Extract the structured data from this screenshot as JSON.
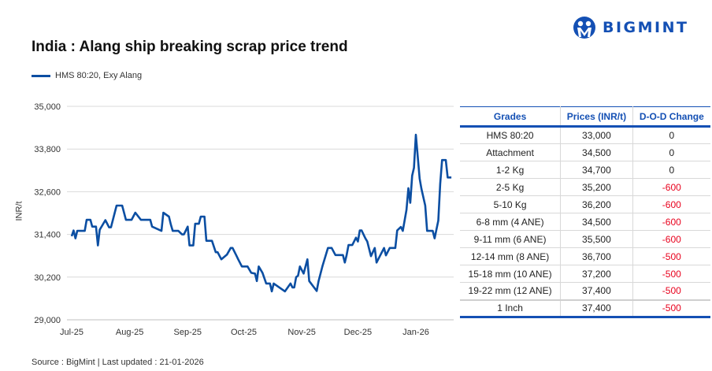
{
  "title": "India : Alang ship breaking scrap price trend",
  "logo": {
    "text": "BIGMINT",
    "color": "#1450b4"
  },
  "source": "Source : BigMint | Last updated : 21-01-2026",
  "table": {
    "headers": [
      "Grades",
      "Prices (INR/t)",
      "D-O-D Change"
    ],
    "rows": [
      [
        "HMS 80:20",
        "33,000",
        "0"
      ],
      [
        "Attachment",
        "34,500",
        "0"
      ],
      [
        "1-2 Kg",
        "34,700",
        "0"
      ],
      [
        "2-5 Kg",
        "35,200",
        "-600"
      ],
      [
        "5-10 Kg",
        "36,200",
        "-600"
      ],
      [
        "6-8 mm (4 ANE)",
        "34,500",
        "-600"
      ],
      [
        "9-11 mm (6 ANE)",
        "35,500",
        "-600"
      ],
      [
        "12-14 mm (8 ANE)",
        "36,700",
        "-500"
      ],
      [
        "15-18 mm (10 ANE)",
        "37,200",
        "-500"
      ],
      [
        "19-22 mm (12 ANE)",
        "37,400",
        "-500"
      ],
      [
        "1 Inch",
        "37,400",
        "-500"
      ]
    ],
    "header_color": "#1450b4",
    "negative_color": "#e8001c"
  },
  "chart_data": {
    "type": "line",
    "title": "India : Alang ship breaking scrap price trend",
    "xlabel": "",
    "ylabel": "INR/t",
    "ylim": [
      29000,
      35000
    ],
    "yticks": [
      "29,000",
      "30,200",
      "31,400",
      "32,600",
      "33,800",
      "35,000"
    ],
    "ytick_values": [
      29000,
      30200,
      31400,
      32600,
      33800,
      35000
    ],
    "xticks": [
      "Jul-25",
      "Aug-25",
      "Sep-25",
      "Oct-25",
      "Nov-25",
      "Dec-25",
      "Jan-26"
    ],
    "xtick_dates": [
      "2025-07-01",
      "2025-08-01",
      "2025-09-01",
      "2025-10-01",
      "2025-11-01",
      "2025-12-01",
      "2026-01-01"
    ],
    "grid": "horizontal",
    "legend": "top-left",
    "series": [
      {
        "name": "HMS 80:20, Exy Alang",
        "color": "#0b4ea2",
        "x": [
          "2025-07-01",
          "2025-07-02",
          "2025-07-03",
          "2025-07-04",
          "2025-07-08",
          "2025-07-09",
          "2025-07-11",
          "2025-07-12",
          "2025-07-14",
          "2025-07-15",
          "2025-07-16",
          "2025-07-19",
          "2025-07-21",
          "2025-07-22",
          "2025-07-25",
          "2025-07-28",
          "2025-07-30",
          "2025-08-02",
          "2025-08-04",
          "2025-08-07",
          "2025-08-12",
          "2025-08-13",
          "2025-08-18",
          "2025-08-19",
          "2025-08-22",
          "2025-08-23",
          "2025-08-24",
          "2025-08-27",
          "2025-08-29",
          "2025-08-30",
          "2025-09-01",
          "2025-09-02",
          "2025-09-04",
          "2025-09-05",
          "2025-09-07",
          "2025-09-08",
          "2025-09-10",
          "2025-09-11",
          "2025-09-14",
          "2025-09-16",
          "2025-09-17",
          "2025-09-19",
          "2025-09-22",
          "2025-09-24",
          "2025-09-25",
          "2025-09-27",
          "2025-09-28",
          "2025-09-30",
          "2025-10-03",
          "2025-10-05",
          "2025-10-07",
          "2025-10-08",
          "2025-10-09",
          "2025-10-11",
          "2025-10-13",
          "2025-10-15",
          "2025-10-16",
          "2025-10-17",
          "2025-10-23",
          "2025-10-26",
          "2025-10-27",
          "2025-10-28",
          "2025-10-29",
          "2025-10-30",
          "2025-10-31",
          "2025-11-02",
          "2025-11-04",
          "2025-11-05",
          "2025-11-09",
          "2025-11-10",
          "2025-11-12",
          "2025-11-15",
          "2025-11-17",
          "2025-11-19",
          "2025-11-23",
          "2025-11-24",
          "2025-11-25",
          "2025-11-26",
          "2025-11-28",
          "2025-11-30",
          "2025-12-01",
          "2025-12-02",
          "2025-12-03",
          "2025-12-05",
          "2025-12-06",
          "2025-12-08",
          "2025-12-10",
          "2025-12-11",
          "2025-12-15",
          "2025-12-16",
          "2025-12-18",
          "2025-12-21",
          "2025-12-22",
          "2025-12-24",
          "2025-12-25",
          "2025-12-27",
          "2025-12-28",
          "2025-12-29",
          "2025-12-30",
          "2025-12-31",
          "2026-01-01",
          "2026-01-03",
          "2026-01-04",
          "2026-01-06",
          "2026-01-07",
          "2026-01-10",
          "2026-01-11",
          "2026-01-13",
          "2026-01-14",
          "2026-01-15",
          "2026-01-17",
          "2026-01-18",
          "2026-01-20"
        ],
        "values": [
          31350,
          31510,
          31290,
          31500,
          31500,
          31810,
          31810,
          31620,
          31620,
          31090,
          31530,
          31800,
          31600,
          31600,
          32210,
          32210,
          31810,
          31810,
          32010,
          31810,
          31810,
          31620,
          31500,
          32010,
          31900,
          31680,
          31500,
          31500,
          31400,
          31400,
          31620,
          31090,
          31090,
          31700,
          31700,
          31900,
          31900,
          31220,
          31220,
          30900,
          30900,
          30700,
          30830,
          31020,
          31020,
          30810,
          30700,
          30500,
          30500,
          30320,
          30300,
          30090,
          30500,
          30320,
          30020,
          30020,
          29800,
          30020,
          29800,
          30020,
          29910,
          29910,
          30200,
          30240,
          30500,
          30300,
          30700,
          30090,
          29810,
          30090,
          30500,
          31020,
          31020,
          30820,
          30820,
          30610,
          30820,
          31100,
          31100,
          31310,
          31200,
          31510,
          31510,
          31290,
          31200,
          30790,
          31020,
          30610,
          31020,
          30810,
          31020,
          31020,
          31510,
          31610,
          31500,
          32090,
          32700,
          32290,
          33050,
          33270,
          34200,
          32970,
          32680,
          32210,
          31500,
          31500,
          31290,
          31790,
          32820,
          33490,
          33490,
          33000,
          33000
        ]
      }
    ]
  }
}
